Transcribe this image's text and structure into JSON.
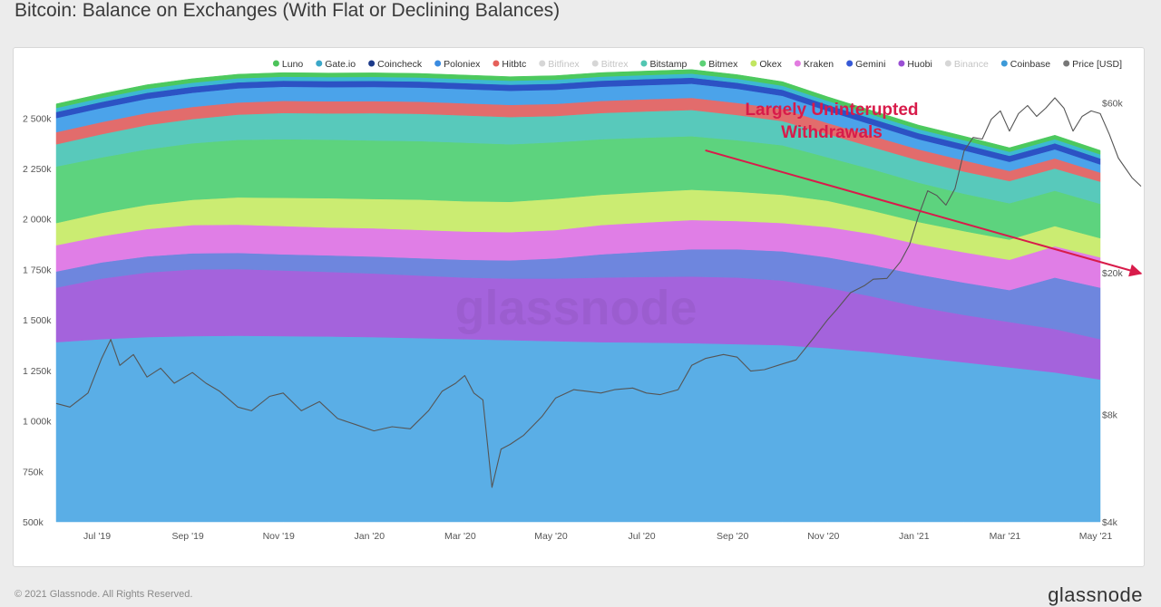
{
  "page": {
    "title": "Bitcoin: Balance on Exchanges (With Flat or Declining Balances)",
    "copyright": "© 2021 Glassnode. All Rights Reserved.",
    "brand": "glassnode",
    "watermark": "glassnode"
  },
  "chart_data": {
    "type": "area",
    "stacked": true,
    "title": "Bitcoin: Balance on Exchanges (With Flat or Declining Balances)",
    "legend_position": "top-right",
    "grid": false,
    "x_ticks": [
      "Jul '19",
      "Sep '19",
      "Nov '19",
      "Jan '20",
      "Mar '20",
      "May '20",
      "Jul '20",
      "Sep '20",
      "Nov '20",
      "Jan '21",
      "Mar '21",
      "May '21"
    ],
    "x": [
      "2019-06",
      "2019-07",
      "2019-08",
      "2019-09",
      "2019-10",
      "2019-11",
      "2019-12",
      "2020-01",
      "2020-02",
      "2020-03",
      "2020-04",
      "2020-05",
      "2020-06",
      "2020-07",
      "2020-08",
      "2020-09",
      "2020-10",
      "2020-11",
      "2020-12",
      "2021-01",
      "2021-02",
      "2021-03",
      "2021-04",
      "2021-05"
    ],
    "y_left": {
      "ticks": [
        "500k",
        "750k",
        "1 000k",
        "1 250k",
        "1 500k",
        "1 750k",
        "2 000k",
        "2 250k",
        "2 500k"
      ],
      "range": [
        500000,
        2600000
      ]
    },
    "y_right": {
      "ticks": [
        "$4k",
        "$8k",
        "$20k",
        "$60k"
      ],
      "scale": "log",
      "range": [
        4000,
        62000
      ]
    },
    "legend": [
      {
        "name": "Luno",
        "color": "#4cc35a",
        "disabled": false
      },
      {
        "name": "Gate.io",
        "color": "#3aa7c8",
        "disabled": false
      },
      {
        "name": "Coincheck",
        "color": "#1d3b8a",
        "disabled": false
      },
      {
        "name": "Poloniex",
        "color": "#3a8be0",
        "disabled": false
      },
      {
        "name": "Hitbtc",
        "color": "#e5605a",
        "disabled": false
      },
      {
        "name": "Bitfinex",
        "color": "#f0d040",
        "disabled": true
      },
      {
        "name": "Bittrex",
        "color": "#f08a30",
        "disabled": true
      },
      {
        "name": "Bitstamp",
        "color": "#52c6b2",
        "disabled": false
      },
      {
        "name": "Bitmex",
        "color": "#5dd176",
        "disabled": false
      },
      {
        "name": "Okex",
        "color": "#c2e660",
        "disabled": false
      },
      {
        "name": "Kraken",
        "color": "#e27be0",
        "disabled": false
      },
      {
        "name": "Gemini",
        "color": "#3659d6",
        "disabled": false
      },
      {
        "name": "Huobi",
        "color": "#9a4fd4",
        "disabled": false
      },
      {
        "name": "Binance",
        "color": "#53c0b2",
        "disabled": true
      },
      {
        "name": "Coinbase",
        "color": "#3d9ad8",
        "disabled": false
      },
      {
        "name": "Price [USD]",
        "color": "#777777",
        "disabled": false
      }
    ],
    "series": [
      {
        "name": "Coinbase",
        "color": "#5aaee6",
        "values": [
          890000,
          905000,
          915000,
          920000,
          922000,
          920000,
          918000,
          915000,
          910000,
          905000,
          900000,
          895000,
          890000,
          888000,
          885000,
          880000,
          875000,
          860000,
          840000,
          815000,
          790000,
          765000,
          740000,
          705000
        ]
      },
      {
        "name": "Huobi",
        "color": "#a463dc",
        "values": [
          270000,
          300000,
          320000,
          330000,
          330000,
          325000,
          320000,
          315000,
          310000,
          305000,
          305000,
          310000,
          320000,
          325000,
          330000,
          330000,
          320000,
          300000,
          275000,
          250000,
          235000,
          225000,
          215000,
          200000
        ]
      },
      {
        "name": "Gemini",
        "color": "#6e86de",
        "values": [
          80000,
          80000,
          80000,
          80000,
          80000,
          80000,
          82000,
          84000,
          86000,
          88000,
          90000,
          100000,
          115000,
          125000,
          135000,
          140000,
          145000,
          150000,
          155000,
          160000,
          160000,
          158000,
          255000,
          255000
        ]
      },
      {
        "name": "Kraken",
        "color": "#e07ee6",
        "values": [
          130000,
          130000,
          135000,
          140000,
          140000,
          140000,
          138000,
          140000,
          140000,
          140000,
          140000,
          140000,
          145000,
          145000,
          145000,
          140000,
          140000,
          150000,
          155000,
          150000,
          150000,
          150000,
          155000,
          150000
        ]
      },
      {
        "name": "Okex",
        "color": "#cbec72",
        "values": [
          110000,
          115000,
          120000,
          125000,
          135000,
          140000,
          145000,
          145000,
          150000,
          150000,
          150000,
          155000,
          150000,
          150000,
          150000,
          145000,
          140000,
          130000,
          115000,
          110000,
          105000,
          100000,
          100000,
          95000
        ]
      },
      {
        "name": "Bitmex",
        "color": "#5dd37e",
        "values": [
          280000,
          275000,
          275000,
          280000,
          285000,
          290000,
          290000,
          290000,
          290000,
          290000,
          285000,
          280000,
          275000,
          270000,
          265000,
          255000,
          245000,
          215000,
          205000,
          195000,
          185000,
          180000,
          175000,
          170000
        ]
      },
      {
        "name": "Bitstamp",
        "color": "#58c9bb",
        "values": [
          110000,
          115000,
          120000,
          120000,
          125000,
          130000,
          130000,
          135000,
          135000,
          135000,
          135000,
          130000,
          130000,
          130000,
          130000,
          125000,
          120000,
          115000,
          110000,
          110000,
          110000,
          110000,
          110000,
          110000
        ]
      },
      {
        "name": "Hitbtc",
        "color": "#e26c6c",
        "values": [
          60000,
          60000,
          60000,
          60000,
          60000,
          60000,
          60000,
          60000,
          60000,
          60000,
          60000,
          60000,
          60000,
          60000,
          60000,
          60000,
          60000,
          55000,
          55000,
          55000,
          55000,
          50000,
          50000,
          45000
        ]
      },
      {
        "name": "Poloniex",
        "color": "#4ba3ea",
        "values": [
          70000,
          70000,
          70000,
          70000,
          70000,
          70000,
          70000,
          70000,
          70000,
          70000,
          70000,
          70000,
          70000,
          70000,
          70000,
          70000,
          65000,
          60000,
          55000,
          50000,
          50000,
          45000,
          45000,
          40000
        ]
      },
      {
        "name": "Coincheck",
        "color": "#2c52c4",
        "values": [
          30000,
          30000,
          30000,
          30000,
          30000,
          30000,
          30000,
          30000,
          30000,
          30000,
          30000,
          30000,
          30000,
          30000,
          30000,
          30000,
          30000,
          30000,
          30000,
          30000,
          30000,
          30000,
          30000,
          30000
        ]
      },
      {
        "name": "Gate.io",
        "color": "#3cb8d2",
        "values": [
          20000,
          20000,
          20000,
          20000,
          20000,
          20000,
          20000,
          20000,
          20000,
          20000,
          20000,
          20000,
          20000,
          20000,
          20000,
          20000,
          20000,
          20000,
          20000,
          20000,
          20000,
          20000,
          20000,
          20000
        ]
      },
      {
        "name": "Luno",
        "color": "#4cc95e",
        "values": [
          20000,
          20000,
          20000,
          20000,
          20000,
          20000,
          20000,
          20000,
          20000,
          20000,
          20000,
          20000,
          20000,
          20000,
          20000,
          20000,
          20000,
          20000,
          20000,
          20000,
          20000,
          20000,
          20000,
          20000
        ]
      }
    ],
    "price_usd": {
      "name": "Price [USD]",
      "x": [
        0,
        0.3,
        0.7,
        1.0,
        1.2,
        1.4,
        1.7,
        2.0,
        2.3,
        2.6,
        3.0,
        3.3,
        3.6,
        4.0,
        4.3,
        4.7,
        5.0,
        5.4,
        5.8,
        6.2,
        6.6,
        7.0,
        7.4,
        7.8,
        8.2,
        8.5,
        8.8,
        9.0,
        9.2,
        9.4,
        9.6,
        9.8,
        10.0,
        10.3,
        10.7,
        11.0,
        11.4,
        11.7,
        12.0,
        12.3,
        12.7,
        13.0,
        13.3,
        13.7,
        14.0,
        14.3,
        14.7,
        15.0,
        15.3,
        15.6,
        16.0,
        16.3,
        16.7,
        17.0,
        17.2,
        17.5,
        17.8,
        18.0,
        18.3,
        18.6,
        18.8,
        19.0,
        19.2,
        19.4,
        19.6,
        19.8,
        20.0,
        20.2,
        20.4,
        20.6,
        20.8,
        21.0,
        21.2,
        21.4,
        21.6,
        21.8,
        22.0,
        22.2,
        22.4,
        22.6,
        22.8,
        23.0,
        23.2,
        23.4,
        23.7,
        23.9
      ],
      "y": [
        8600,
        8400,
        9200,
        11500,
        13000,
        11000,
        11800,
        10200,
        10800,
        9800,
        10500,
        9800,
        9300,
        8400,
        8200,
        9000,
        9200,
        8200,
        8700,
        7800,
        7500,
        7200,
        7400,
        7300,
        8200,
        9300,
        9800,
        10300,
        9200,
        8800,
        5000,
        6400,
        6600,
        7000,
        7900,
        8900,
        9400,
        9300,
        9200,
        9400,
        9500,
        9200,
        9100,
        9400,
        11000,
        11500,
        11800,
        11600,
        10600,
        10700,
        11100,
        11400,
        13200,
        14800,
        15800,
        17600,
        18400,
        19200,
        19300,
        21500,
        24000,
        29000,
        34000,
        33000,
        31000,
        34500,
        44000,
        48000,
        47500,
        54000,
        57000,
        50000,
        56000,
        59000,
        55000,
        58000,
        62000,
        58000,
        50000,
        55000,
        57000,
        56000,
        49000,
        42000,
        37000,
        35000
      ]
    },
    "annotation": {
      "text_lines": [
        "Largely Uninterupted",
        "Withdrawals"
      ],
      "arrow_from": {
        "x": "2020-08-10",
        "y": 2340000
      },
      "arrow_to": {
        "x": "2021-05-28",
        "y": 1730000
      },
      "color": "#d81b4a"
    }
  }
}
